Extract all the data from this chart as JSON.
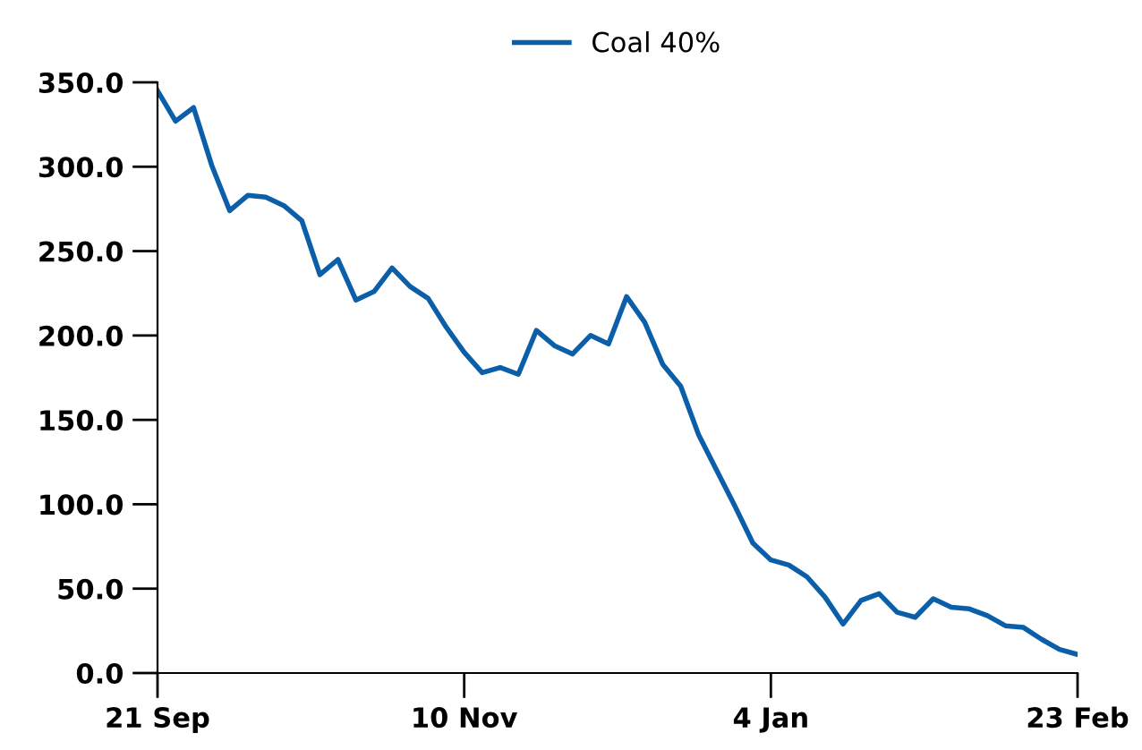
{
  "chart_data": {
    "type": "line",
    "categories": [
      "21 Sep",
      null,
      null,
      null,
      null,
      null,
      null,
      null,
      null,
      null,
      null,
      null,
      null,
      null,
      null,
      null,
      null,
      "10 Nov",
      null,
      null,
      null,
      null,
      null,
      null,
      null,
      null,
      null,
      null,
      null,
      null,
      null,
      null,
      null,
      null,
      "4 Jan",
      null,
      null,
      null,
      null,
      null,
      null,
      null,
      null,
      null,
      null,
      null,
      null,
      null,
      null,
      null,
      null,
      "23 Feb"
    ],
    "series": [
      {
        "name": "Coal 40%",
        "color": "#0a5fa8",
        "values": [
          345,
          327,
          335,
          301,
          274,
          283,
          282,
          277,
          268,
          236,
          245,
          221,
          226,
          240,
          229,
          222,
          205,
          190,
          178,
          181,
          177,
          203,
          194,
          189,
          200,
          195,
          223,
          208,
          183,
          170,
          141,
          120,
          99,
          77,
          67,
          64,
          57,
          45,
          29,
          43,
          47,
          36,
          33,
          44,
          39,
          38,
          34,
          28,
          27,
          20,
          14,
          11
        ]
      }
    ],
    "ylim": [
      0,
      350
    ],
    "yticks": [
      {
        "value": 0,
        "label": "0.0"
      },
      {
        "value": 50,
        "label": "50.0"
      },
      {
        "value": 100,
        "label": "100.0"
      },
      {
        "value": 150,
        "label": "150.0"
      },
      {
        "value": 200,
        "label": "200.0"
      },
      {
        "value": 250,
        "label": "250.0"
      },
      {
        "value": 300,
        "label": "300.0"
      },
      {
        "value": 350,
        "label": "350.0"
      }
    ],
    "legend": "top",
    "grid": false,
    "marker": "none",
    "line_style": "solid"
  }
}
